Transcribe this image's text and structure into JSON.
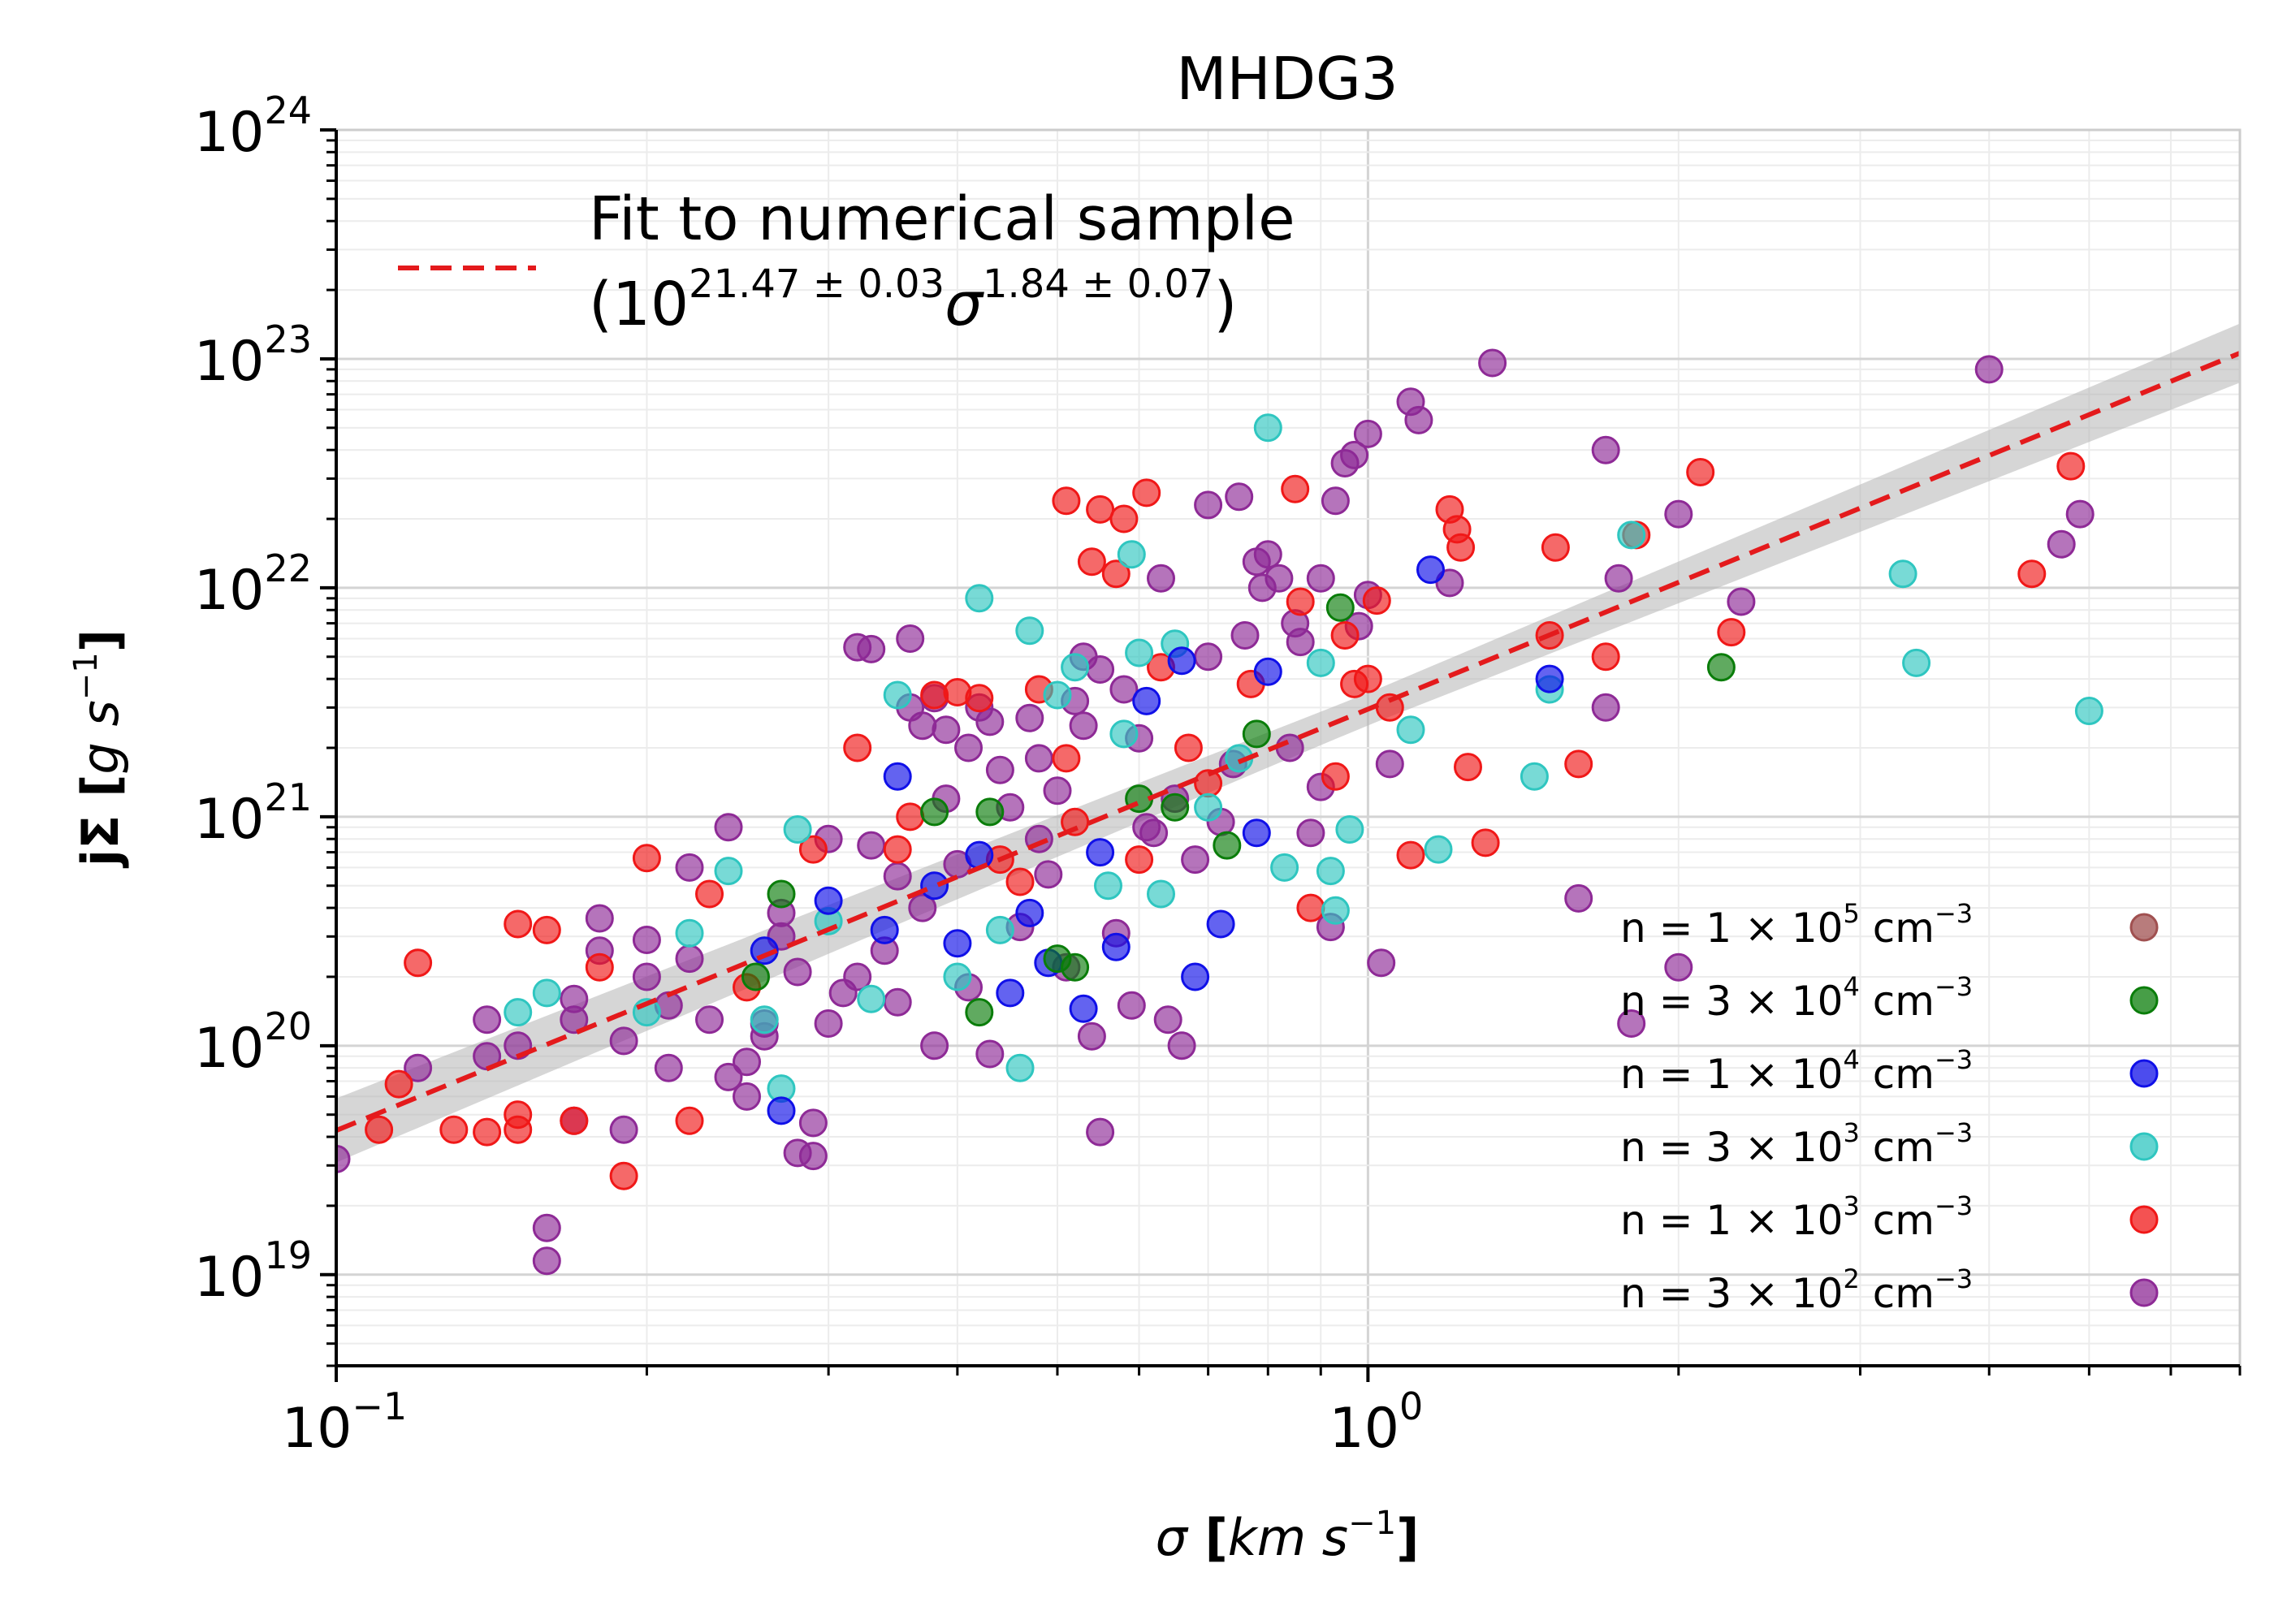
{
  "chart_data": {
    "type": "scatter",
    "title": "MHDG3",
    "xlabel": "σ [km s⁻¹]",
    "ylabel": "jΣ [g s⁻¹]",
    "xscale": "log",
    "yscale": "log",
    "xlim": [
      0.1,
      7
    ],
    "ylim": [
      4e+18,
      1e+24
    ],
    "x_ticks": [
      {
        "value": 0.1,
        "base": "10",
        "exp": "−1"
      },
      {
        "value": 1,
        "base": "10",
        "exp": "0"
      }
    ],
    "y_ticks": [
      {
        "value": 1e+19,
        "base": "10",
        "exp": "19"
      },
      {
        "value": 1e+20,
        "base": "10",
        "exp": "20"
      },
      {
        "value": 1e+21,
        "base": "10",
        "exp": "21"
      },
      {
        "value": 1e+22,
        "base": "10",
        "exp": "22"
      },
      {
        "value": 1e+23,
        "base": "10",
        "exp": "23"
      },
      {
        "value": 1e+24,
        "base": "10",
        "exp": "24"
      }
    ],
    "grid": true,
    "fit": {
      "label_line1": "Fit to numerical sample",
      "label_line2_open": "(10",
      "label_exp_a": "21.47 ± 0.03",
      "label_sigma": "σ",
      "label_exp_b": "1.84 ± 0.07",
      "label_close": ")",
      "intercept_log10": 21.47,
      "slope": 1.84,
      "color": "#e41a1c",
      "band_color": "#b4b4b4"
    },
    "series": [
      {
        "name": "n = 1 × 10⁵ cm⁻³",
        "prefix": "n  = 1 × 10",
        "exp": "5",
        "suffix": " cm",
        "unit_exp": "−3",
        "color": "#a05050",
        "points": []
      },
      {
        "name": "n = 3 × 10⁴ cm⁻³",
        "prefix": "n  = 3 × 10",
        "exp": "4",
        "suffix": " cm",
        "unit_exp": "−3",
        "color": "#0a7d0a",
        "points": [
          [
            0.27,
            4.6e+20
          ],
          [
            0.255,
            2e+20
          ],
          [
            0.38,
            1.05e+21
          ],
          [
            0.43,
            1.05e+21
          ],
          [
            0.42,
            1.4e+20
          ],
          [
            0.5,
            2.4e+20
          ],
          [
            0.6,
            1.2e+21
          ],
          [
            0.65,
            1.1e+21
          ],
          [
            0.73,
            7.5e+20
          ],
          [
            0.94,
            8.2e+21
          ],
          [
            2.2,
            4.5e+21
          ],
          [
            0.52,
            2.2e+20
          ],
          [
            0.78,
            2.3e+21
          ]
        ]
      },
      {
        "name": "n = 1 × 10⁴ cm⁻³",
        "prefix": "n  = 1 × 10",
        "exp": "4",
        "suffix": " cm",
        "unit_exp": "−3",
        "color": "#1010e8",
        "points": [
          [
            0.27,
            5.2e+19
          ],
          [
            0.3,
            4.3e+20
          ],
          [
            0.35,
            1.5e+21
          ],
          [
            0.38,
            5e+20
          ],
          [
            0.4,
            2.8e+20
          ],
          [
            0.45,
            1.7e+20
          ],
          [
            0.47,
            3.8e+20
          ],
          [
            0.53,
            1.45e+20
          ],
          [
            0.57,
            2.7e+20
          ],
          [
            0.66,
            4.8e+21
          ],
          [
            0.68,
            2e+20
          ],
          [
            0.72,
            3.4e+20
          ],
          [
            0.8,
            4.3e+21
          ],
          [
            1.15,
            1.2e+22
          ],
          [
            1.5,
            4e+21
          ],
          [
            0.26,
            2.6e+20
          ],
          [
            0.42,
            6.8e+20
          ],
          [
            0.61,
            3.2e+21
          ],
          [
            0.78,
            8.5e+20
          ],
          [
            0.34,
            3.2e+20
          ],
          [
            0.49,
            2.3e+20
          ],
          [
            0.55,
            7e+20
          ]
        ]
      },
      {
        "name": "n = 3 × 10³ cm⁻³",
        "prefix": "n  = 3 × 10",
        "exp": "3",
        "suffix": " cm",
        "unit_exp": "−3",
        "color": "#2fc6c0",
        "points": [
          [
            0.15,
            1.4e+20
          ],
          [
            0.16,
            1.7e+20
          ],
          [
            0.2,
            1.4e+20
          ],
          [
            0.24,
            5.8e+20
          ],
          [
            0.28,
            8.8e+20
          ],
          [
            0.26,
            1.3e+20
          ],
          [
            0.3,
            3.5e+20
          ],
          [
            0.35,
            3.4e+21
          ],
          [
            0.42,
            9e+21
          ],
          [
            0.47,
            6.5e+21
          ],
          [
            0.46,
            8e+19
          ],
          [
            0.5,
            3.4e+21
          ],
          [
            0.52,
            4.5e+21
          ],
          [
            0.56,
            5e+20
          ],
          [
            0.59,
            1.4e+22
          ],
          [
            0.6,
            5.2e+21
          ],
          [
            0.65,
            5.7e+21
          ],
          [
            0.8,
            5e+22
          ],
          [
            0.9,
            4.7e+21
          ],
          [
            0.92,
            5.8e+20
          ],
          [
            0.93,
            3.9e+20
          ],
          [
            0.96,
            8.8e+20
          ],
          [
            1.1,
            2.4e+21
          ],
          [
            1.17,
            7.2e+20
          ],
          [
            1.5,
            3.6e+21
          ],
          [
            1.45,
            1.5e+21
          ],
          [
            1.8,
            1.7e+22
          ],
          [
            3.3,
            1.15e+22
          ],
          [
            3.4,
            4.7e+21
          ],
          [
            5.0,
            2.9e+21
          ],
          [
            0.58,
            2.3e+21
          ],
          [
            0.75,
            1.8e+21
          ],
          [
            0.83,
            6e+20
          ],
          [
            0.63,
            4.6e+20
          ],
          [
            0.4,
            2e+20
          ],
          [
            0.44,
            3.2e+20
          ],
          [
            0.33,
            1.6e+20
          ],
          [
            0.22,
            3.1e+20
          ],
          [
            0.27,
            6.5e+19
          ],
          [
            0.7,
            1.1e+21
          ]
        ]
      },
      {
        "name": "n = 1 × 10³ cm⁻³",
        "prefix": "n  = 1 × 10",
        "exp": "3",
        "suffix": " cm",
        "unit_exp": "−3",
        "color": "#f01818",
        "points": [
          [
            0.11,
            4.3e+19
          ],
          [
            0.115,
            6.8e+19
          ],
          [
            0.12,
            2.3e+20
          ],
          [
            0.13,
            4.3e+19
          ],
          [
            0.14,
            4.2e+19
          ],
          [
            0.15,
            4.3e+19
          ],
          [
            0.15,
            5e+19
          ],
          [
            0.15,
            3.4e+20
          ],
          [
            0.16,
            3.2e+20
          ],
          [
            0.17,
            4.7e+19
          ],
          [
            0.18,
            2.2e+20
          ],
          [
            0.19,
            2.7e+19
          ],
          [
            0.2,
            6.6e+20
          ],
          [
            0.22,
            4.7e+19
          ],
          [
            0.23,
            4.6e+20
          ],
          [
            0.25,
            1.8e+20
          ],
          [
            0.32,
            2e+21
          ],
          [
            0.35,
            7.2e+20
          ],
          [
            0.38,
            3.4e+21
          ],
          [
            0.4,
            3.5e+21
          ],
          [
            0.42,
            3.3e+21
          ],
          [
            0.46,
            5.2e+20
          ],
          [
            0.48,
            3.6e+21
          ],
          [
            0.51,
            1.8e+21
          ],
          [
            0.51,
            2.4e+22
          ],
          [
            0.55,
            2.2e+22
          ],
          [
            0.54,
            1.3e+22
          ],
          [
            0.57,
            1.15e+22
          ],
          [
            0.58,
            2e+22
          ],
          [
            0.61,
            2.6e+22
          ],
          [
            0.63,
            4.5e+21
          ],
          [
            0.7,
            1.4e+21
          ],
          [
            0.77,
            3.8e+21
          ],
          [
            0.85,
            2.7e+22
          ],
          [
            0.86,
            8.7e+21
          ],
          [
            0.93,
            1.5e+21
          ],
          [
            0.97,
            3.8e+21
          ],
          [
            1.0,
            4e+21
          ],
          [
            1.05,
            3e+21
          ],
          [
            1.1,
            6.8e+20
          ],
          [
            1.2,
            2.2e+22
          ],
          [
            1.22,
            1.8e+22
          ],
          [
            1.23,
            1.5e+22
          ],
          [
            1.25,
            1.65e+21
          ],
          [
            1.3,
            7.7e+20
          ],
          [
            1.5,
            6.2e+21
          ],
          [
            1.52,
            1.5e+22
          ],
          [
            1.6,
            1.7e+21
          ],
          [
            1.7,
            5e+21
          ],
          [
            1.82,
            1.7e+22
          ],
          [
            2.1,
            3.2e+22
          ],
          [
            2.25,
            6.4e+21
          ],
          [
            4.4,
            1.15e+22
          ],
          [
            4.8,
            3.4e+22
          ],
          [
            0.29,
            7.2e+20
          ],
          [
            0.36,
            1e+21
          ],
          [
            0.44,
            6.5e+20
          ],
          [
            0.52,
            9.5e+20
          ],
          [
            0.6,
            6.5e+20
          ],
          [
            0.67,
            2e+21
          ],
          [
            0.88,
            4e+20
          ],
          [
            0.95,
            6.2e+21
          ],
          [
            1.02,
            8.8e+21
          ]
        ]
      },
      {
        "name": "n = 3 × 10² cm⁻³",
        "prefix": "n  = 3 × 10",
        "exp": "2",
        "suffix": " cm",
        "unit_exp": "−3",
        "color": "#8e2a96",
        "points": [
          [
            0.1,
            3.2e+19
          ],
          [
            0.12,
            8e+19
          ],
          [
            0.14,
            9e+19
          ],
          [
            0.15,
            1e+20
          ],
          [
            0.16,
            1.6e+19
          ],
          [
            0.16,
            1.15e+19
          ],
          [
            0.17,
            4.7e+19
          ],
          [
            0.17,
            1.3e+20
          ],
          [
            0.18,
            3.6e+20
          ],
          [
            0.18,
            2.6e+20
          ],
          [
            0.19,
            4.3e+19
          ],
          [
            0.2,
            2e+20
          ],
          [
            0.21,
            8e+19
          ],
          [
            0.22,
            6e+20
          ],
          [
            0.24,
            9e+20
          ],
          [
            0.25,
            6e+19
          ],
          [
            0.26,
            1.1e+20
          ],
          [
            0.27,
            3.8e+20
          ],
          [
            0.28,
            3.4e+19
          ],
          [
            0.29,
            4.6e+19
          ],
          [
            0.29,
            3.3e+19
          ],
          [
            0.3,
            8e+20
          ],
          [
            0.32,
            5.5e+21
          ],
          [
            0.33,
            5.4e+21
          ],
          [
            0.34,
            2.6e+20
          ],
          [
            0.35,
            5.5e+20
          ],
          [
            0.36,
            6e+21
          ],
          [
            0.37,
            2.5e+21
          ],
          [
            0.38,
            3.3e+21
          ],
          [
            0.39,
            1.2e+21
          ],
          [
            0.41,
            2e+21
          ],
          [
            0.42,
            3e+21
          ],
          [
            0.43,
            2.6e+21
          ],
          [
            0.45,
            1.1e+21
          ],
          [
            0.47,
            2.7e+21
          ],
          [
            0.48,
            1.8e+21
          ],
          [
            0.5,
            1.3e+21
          ],
          [
            0.52,
            3.2e+21
          ],
          [
            0.53,
            5e+21
          ],
          [
            0.55,
            4.4e+21
          ],
          [
            0.55,
            4.2e+19
          ],
          [
            0.58,
            3.6e+21
          ],
          [
            0.6,
            2.2e+21
          ],
          [
            0.62,
            8.5e+20
          ],
          [
            0.63,
            1.1e+22
          ],
          [
            0.65,
            1.2e+21
          ],
          [
            0.7,
            5e+21
          ],
          [
            0.7,
            2.3e+22
          ],
          [
            0.75,
            2.5e+22
          ],
          [
            0.78,
            1.3e+22
          ],
          [
            0.8,
            1.4e+22
          ],
          [
            0.82,
            1.1e+22
          ],
          [
            0.85,
            7e+21
          ],
          [
            0.9,
            1.35e+21
          ],
          [
            0.93,
            2.4e+22
          ],
          [
            0.95,
            3.5e+22
          ],
          [
            0.97,
            3.8e+22
          ],
          [
            1.0,
            4.7e+22
          ],
          [
            1.0,
            9.3e+21
          ],
          [
            1.05,
            1.7e+21
          ],
          [
            1.1,
            6.5e+22
          ],
          [
            1.12,
            5.4e+22
          ],
          [
            1.2,
            1.05e+22
          ],
          [
            1.32,
            9.6e+22
          ],
          [
            1.6,
            4.4e+20
          ],
          [
            1.7,
            3e+21
          ],
          [
            1.7,
            4e+22
          ],
          [
            1.75,
            1.1e+22
          ],
          [
            1.8,
            1.25e+20
          ],
          [
            2.0,
            2.1e+22
          ],
          [
            2.0,
            2.2e+20
          ],
          [
            2.3,
            8.7e+21
          ],
          [
            4.0,
            9e+22
          ],
          [
            4.7,
            1.55e+22
          ],
          [
            4.9,
            2.1e+22
          ],
          [
            0.23,
            1.3e+20
          ],
          [
            0.27,
            3e+20
          ],
          [
            0.31,
            1.7e+20
          ],
          [
            0.33,
            7.5e+20
          ],
          [
            0.37,
            4e+20
          ],
          [
            0.4,
            6.2e+20
          ],
          [
            0.43,
            9.2e+19
          ],
          [
            0.46,
            3.3e+20
          ],
          [
            0.49,
            5.6e+20
          ],
          [
            0.51,
            2.2e+20
          ],
          [
            0.54,
            1.1e+20
          ],
          [
            0.57,
            3.1e+20
          ],
          [
            0.59,
            1.5e+20
          ],
          [
            0.64,
            1.3e+20
          ],
          [
            0.66,
            1e+20
          ],
          [
            0.72,
            9.5e+20
          ],
          [
            0.76,
            6.2e+21
          ],
          [
            0.84,
            2e+21
          ],
          [
            0.88,
            8.5e+20
          ],
          [
            0.92,
            3.3e+20
          ],
          [
            1.03,
            2.3e+20
          ],
          [
            0.21,
            1.5e+20
          ],
          [
            0.24,
            7.3e+19
          ],
          [
            0.26,
            1.25e+20
          ],
          [
            0.28,
            2.1e+20
          ],
          [
            0.3,
            1.25e+20
          ],
          [
            0.32,
            2e+20
          ],
          [
            0.35,
            1.55e+20
          ],
          [
            0.38,
            1e+20
          ],
          [
            0.41,
            1.8e+20
          ],
          [
            0.19,
            1.05e+20
          ],
          [
            0.22,
            2.4e+20
          ],
          [
            0.25,
            8.5e+19
          ],
          [
            0.14,
            1.3e+20
          ],
          [
            0.17,
            1.6e+20
          ],
          [
            0.2,
            2.9e+20
          ],
          [
            0.36,
            3e+21
          ],
          [
            0.39,
            2.4e+21
          ],
          [
            0.44,
            1.6e+21
          ],
          [
            0.48,
            8e+20
          ],
          [
            0.53,
            2.5e+21
          ],
          [
            0.61,
            9e+20
          ],
          [
            0.68,
            6.5e+20
          ],
          [
            0.74,
            1.7e+21
          ],
          [
            0.79,
            1e+22
          ],
          [
            0.86,
            5.8e+21
          ],
          [
            0.9,
            1.1e+22
          ],
          [
            0.98,
            6.8e+21
          ]
        ]
      }
    ]
  }
}
